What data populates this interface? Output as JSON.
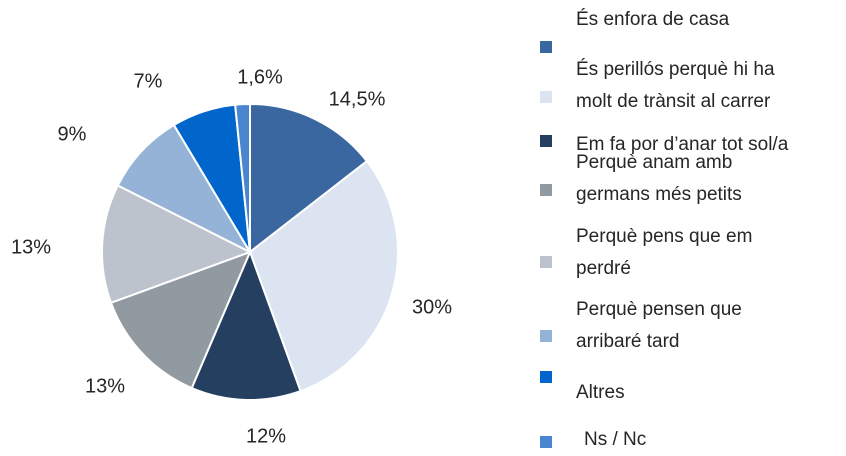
{
  "chart_data": {
    "type": "pie",
    "categories": [
      "És enfora de casa",
      "És perillós perquè hi ha\nmolt de trànsit al carrer",
      "Em fa por d’anar tot sol/a",
      "Perquè anam amb\ngermans més petits",
      "Perquè pens que em\nperdré",
      "Perquè pensen que\narribaré tard",
      "Altres",
      "Ns / Nc"
    ],
    "values": [
      14.5,
      30,
      12,
      13,
      13,
      9,
      7,
      1.6
    ],
    "value_labels": [
      "14,5%",
      "30%",
      "12%",
      "13%",
      "13%",
      "9%",
      "7%",
      "1,6%"
    ],
    "colors": [
      "#3a67a0",
      "#dbe4f0",
      "#243f60",
      "#9199a1",
      "#bcc3cc",
      "#95b3d7",
      "#0066cc",
      "#4a86cf"
    ],
    "legend": "right"
  }
}
